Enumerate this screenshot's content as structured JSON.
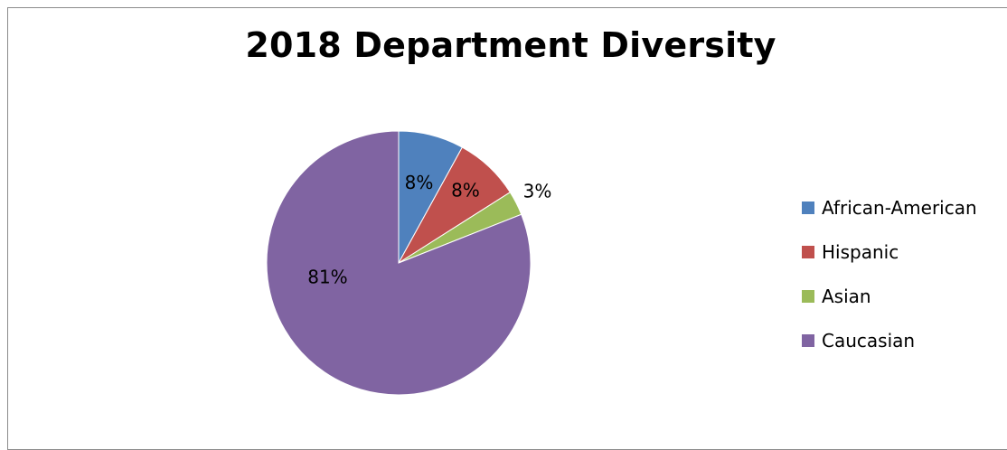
{
  "chart_data": {
    "type": "pie",
    "title": "2018 Department Diversity",
    "categories": [
      "African-American",
      "Hispanic",
      "Asian",
      "Caucasian"
    ],
    "values": [
      8,
      8,
      3,
      81
    ],
    "data_labels": [
      "8%",
      "8%",
      "3%",
      "81%"
    ],
    "colors": [
      "#4f81bd",
      "#c0504d",
      "#9bbb59",
      "#8064a2"
    ],
    "legend_position": "right"
  }
}
